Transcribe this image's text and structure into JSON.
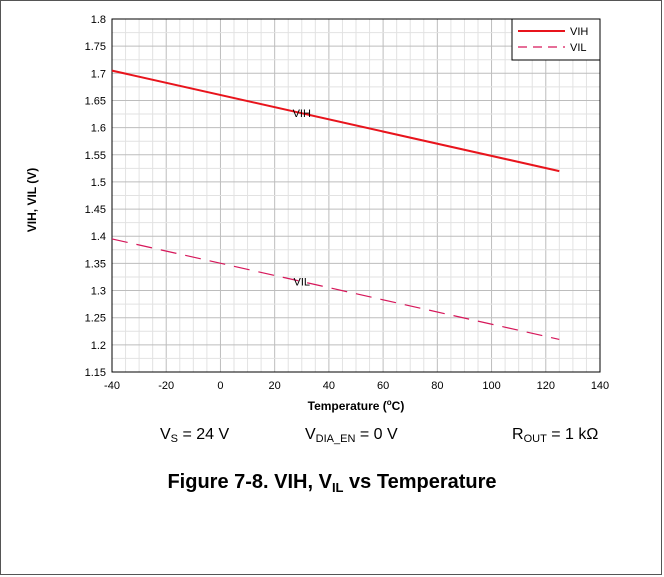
{
  "chart_data": {
    "type": "line",
    "xlabel_main": "Temperature (",
    "xlabel_sup": "o",
    "xlabel_tail": "C)",
    "ylabel": "VIH, VIL (V)",
    "xlim": [
      -40,
      140
    ],
    "ylim": [
      1.15,
      1.8
    ],
    "x_ticks": [
      "-40",
      "-20",
      "0",
      "20",
      "40",
      "60",
      "80",
      "100",
      "120",
      "140"
    ],
    "y_ticks": [
      "1.15",
      "1.2",
      "1.25",
      "1.3",
      "1.35",
      "1.4",
      "1.45",
      "1.5",
      "1.55",
      "1.6",
      "1.65",
      "1.7",
      "1.75",
      "1.8"
    ],
    "grid": true,
    "legend_position": "top-right",
    "series": [
      {
        "name": "VIH",
        "style": "solid",
        "color": "#e8141c",
        "x": [
          -40,
          125
        ],
        "y": [
          1.705,
          1.52
        ],
        "label": "VIH",
        "label_x": 30
      },
      {
        "name": "VIL",
        "style": "dashed",
        "color": "#d6175a",
        "x": [
          -40,
          125
        ],
        "y": [
          1.395,
          1.21
        ],
        "label": "VIL",
        "label_x": 30
      }
    ]
  },
  "conditions": [
    {
      "main": "V",
      "sub": "S",
      "tail": " = 24 V"
    },
    {
      "main": "V",
      "sub": "DIA_EN",
      "tail": " = 0 V"
    },
    {
      "main": "R",
      "sub": "OUT",
      "tail": " = 1 kΩ"
    }
  ],
  "caption": {
    "pre": "Figure 7-8. VIH, V",
    "sub": "IL",
    "post": " vs Temperature"
  }
}
